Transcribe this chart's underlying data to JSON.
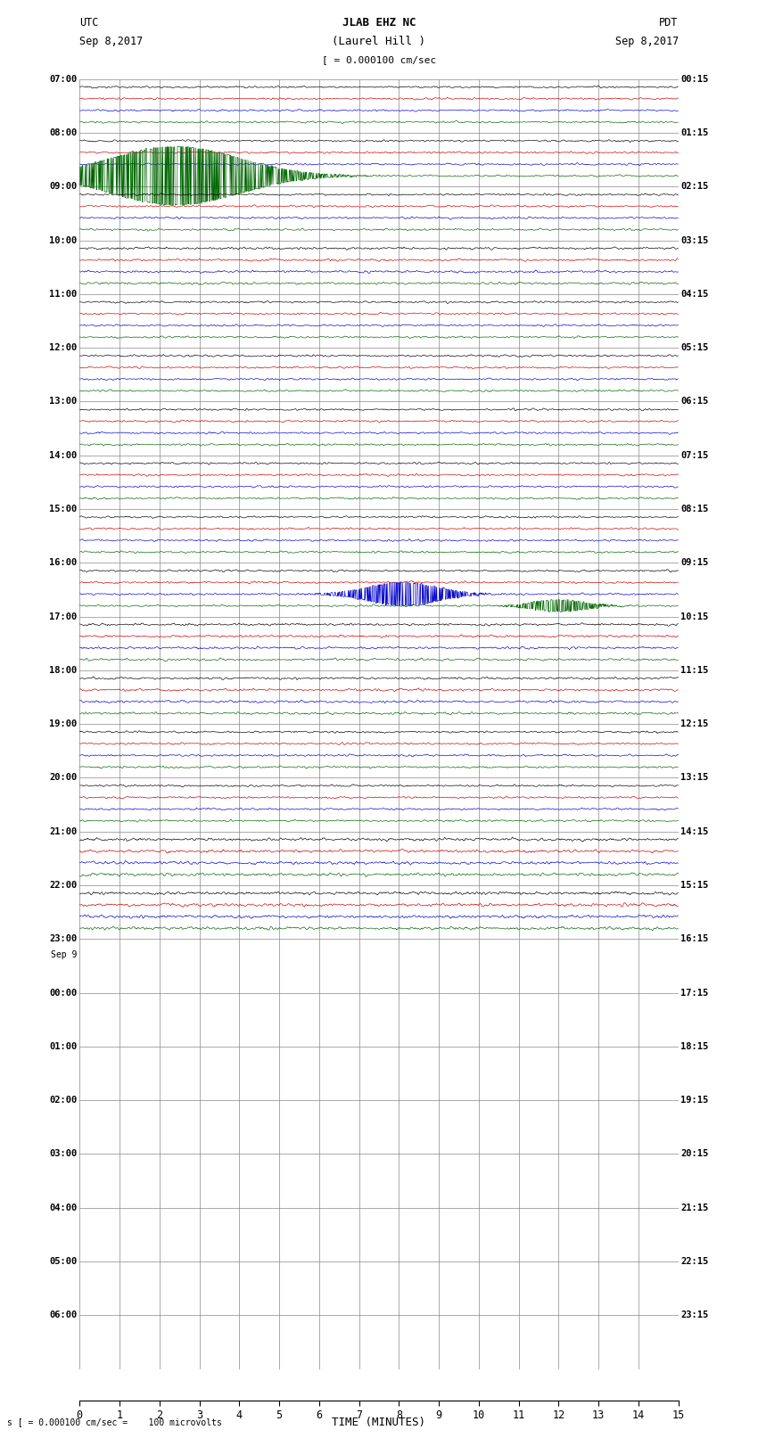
{
  "title_line1": "JLAB EHZ NC",
  "title_line2": "(Laurel Hill )",
  "title_scale": "[ = 0.000100 cm/sec",
  "left_header_1": "UTC",
  "left_header_2": "Sep 8,2017",
  "right_header_1": "PDT",
  "right_header_2": "Sep 8,2017",
  "bottom_label": "TIME (MINUTES)",
  "bottom_note": "s [ = 0.000100 cm/sec =    100 microvolts",
  "xmin": 0,
  "xmax": 15,
  "xticks": [
    0,
    1,
    2,
    3,
    4,
    5,
    6,
    7,
    8,
    9,
    10,
    11,
    12,
    13,
    14,
    15
  ],
  "bg_color": "#ffffff",
  "grid_color": "#888888",
  "trace_colors": [
    "#000000",
    "#cc0000",
    "#0000cc",
    "#006600"
  ],
  "left_times_utc": [
    "07:00",
    "08:00",
    "09:00",
    "10:00",
    "11:00",
    "12:00",
    "13:00",
    "14:00",
    "15:00",
    "16:00",
    "17:00",
    "18:00",
    "19:00",
    "20:00",
    "21:00",
    "22:00",
    "23:00",
    "Sep 9",
    "00:00",
    "01:00",
    "02:00",
    "03:00",
    "04:00",
    "05:00",
    "06:00"
  ],
  "right_times_pdt": [
    "00:15",
    "01:15",
    "02:15",
    "03:15",
    "04:15",
    "05:15",
    "06:15",
    "07:15",
    "08:15",
    "09:15",
    "10:15",
    "11:15",
    "12:15",
    "13:15",
    "14:15",
    "15:15",
    "16:15",
    "17:15",
    "18:15",
    "19:15",
    "20:15",
    "21:15",
    "22:15",
    "23:15"
  ],
  "n_rows": 24,
  "traces_per_row": 4,
  "active_rows": 16,
  "noise_amplitude": 0.08,
  "random_seed": 12345
}
